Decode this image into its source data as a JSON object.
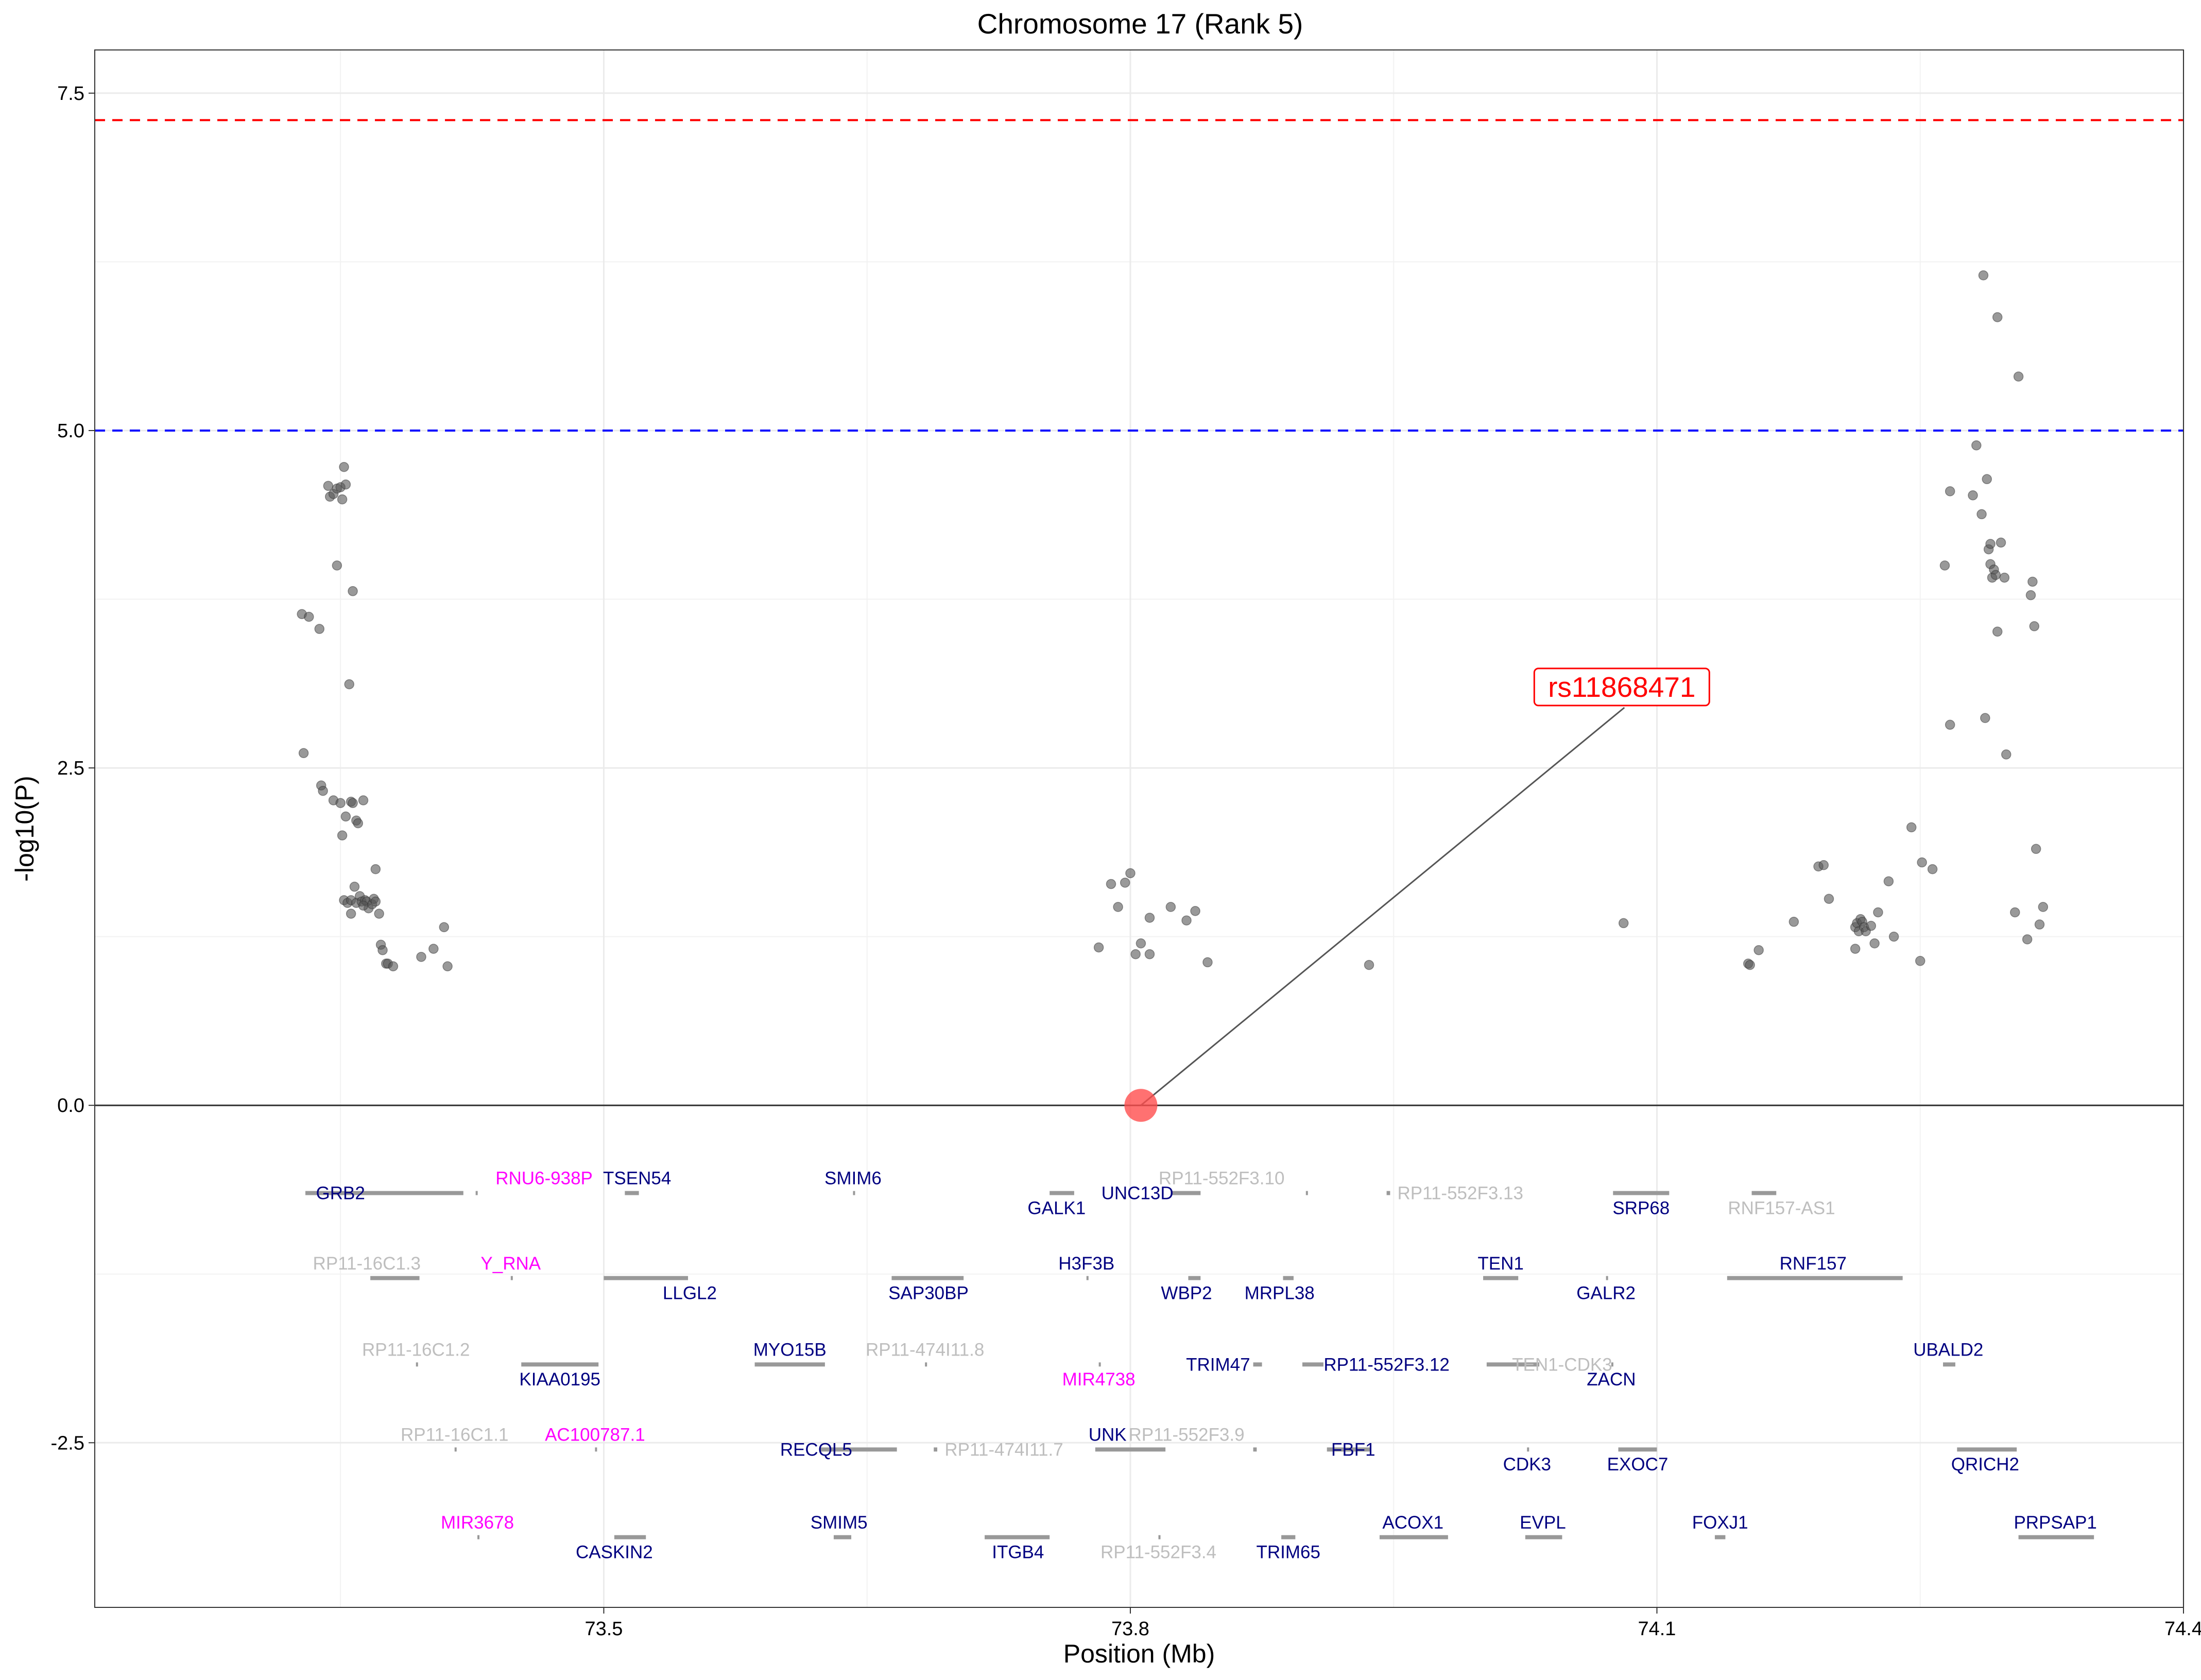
{
  "chart_data": {
    "type": "scatter",
    "title": "Chromosome 17 (Rank 5)",
    "xlabel": "Position (Mb)",
    "ylabel": "-log10(P)",
    "xlim": [
      73.21,
      74.4
    ],
    "ylim": [
      -3.72,
      7.82
    ],
    "x_ticks": [
      73.5,
      73.8,
      74.1,
      74.4
    ],
    "x_tick_labels": [
      "73.5",
      "73.8",
      "74.1",
      "74.4"
    ],
    "y_ticks": [
      -2.5,
      0,
      2.5,
      5,
      7.5
    ],
    "y_tick_labels": [
      "-2.5",
      "0.0",
      "2.5",
      "5.0",
      "7.5"
    ],
    "grid": true,
    "thresholds": [
      {
        "value": 7.3,
        "color": "#ff0000",
        "style": "dashed"
      },
      {
        "value": 5.0,
        "color": "#0000ff",
        "style": "dashed"
      }
    ],
    "zero_line": 0,
    "lead_snp": {
      "name": "rs11868471",
      "x": 73.806,
      "y": 0.0,
      "label_x": 74.08,
      "label_y": 3.1,
      "color": "#ff0000"
    },
    "points": [
      [
        73.328,
        3.64
      ],
      [
        73.332,
        3.62
      ],
      [
        73.338,
        3.53
      ],
      [
        73.329,
        2.61
      ],
      [
        73.339,
        2.37
      ],
      [
        73.34,
        2.33
      ],
      [
        73.343,
        4.59
      ],
      [
        73.344,
        4.51
      ],
      [
        73.346,
        4.53
      ],
      [
        73.348,
        4.57
      ],
      [
        73.35,
        4.58
      ],
      [
        73.352,
        4.73
      ],
      [
        73.353,
        4.6
      ],
      [
        73.351,
        4.49
      ],
      [
        73.348,
        4.0
      ],
      [
        73.357,
        3.81
      ],
      [
        73.355,
        3.12
      ],
      [
        73.356,
        2.25
      ],
      [
        73.359,
        2.11
      ],
      [
        73.36,
        2.09
      ],
      [
        73.346,
        2.26
      ],
      [
        73.351,
        2.0
      ],
      [
        73.353,
        2.14
      ],
      [
        73.35,
        2.24
      ],
      [
        73.357,
        2.24
      ],
      [
        73.363,
        2.26
      ],
      [
        73.37,
        1.75
      ],
      [
        73.352,
        1.52
      ],
      [
        73.354,
        1.5
      ],
      [
        73.356,
        1.52
      ],
      [
        73.358,
        1.62
      ],
      [
        73.359,
        1.5
      ],
      [
        73.361,
        1.55
      ],
      [
        73.362,
        1.51
      ],
      [
        73.364,
        1.52
      ],
      [
        73.365,
        1.51
      ],
      [
        73.366,
        1.46
      ],
      [
        73.368,
        1.49
      ],
      [
        73.369,
        1.53
      ],
      [
        73.37,
        1.51
      ],
      [
        73.372,
        1.42
      ],
      [
        73.373,
        1.19
      ],
      [
        73.374,
        1.15
      ],
      [
        73.376,
        1.05
      ],
      [
        73.377,
        1.05
      ],
      [
        73.38,
        1.03
      ],
      [
        73.356,
        1.42
      ],
      [
        73.363,
        1.48
      ],
      [
        73.396,
        1.1
      ],
      [
        73.403,
        1.16
      ],
      [
        73.409,
        1.32
      ],
      [
        73.411,
        1.03
      ],
      [
        73.782,
        1.17
      ],
      [
        73.789,
        1.64
      ],
      [
        73.793,
        1.47
      ],
      [
        73.797,
        1.65
      ],
      [
        73.8,
        1.72
      ],
      [
        73.803,
        1.12
      ],
      [
        73.806,
        1.2
      ],
      [
        73.811,
        1.39
      ],
      [
        73.811,
        1.12
      ],
      [
        73.823,
        1.47
      ],
      [
        73.832,
        1.37
      ],
      [
        73.837,
        1.44
      ],
      [
        73.844,
        1.06
      ],
      [
        73.936,
        1.04
      ],
      [
        74.081,
        1.35
      ],
      [
        74.152,
        1.05
      ],
      [
        74.153,
        1.04
      ],
      [
        74.158,
        1.15
      ],
      [
        74.178,
        1.36
      ],
      [
        74.192,
        1.77
      ],
      [
        74.195,
        1.78
      ],
      [
        74.198,
        1.53
      ],
      [
        74.213,
        1.16
      ],
      [
        74.213,
        1.32
      ],
      [
        74.214,
        1.35
      ],
      [
        74.215,
        1.29
      ],
      [
        74.216,
        1.38
      ],
      [
        74.217,
        1.36
      ],
      [
        74.218,
        1.32
      ],
      [
        74.219,
        1.29
      ],
      [
        74.222,
        1.33
      ],
      [
        74.224,
        1.2
      ],
      [
        74.226,
        1.43
      ],
      [
        74.232,
        1.66
      ],
      [
        74.235,
        1.25
      ],
      [
        74.245,
        2.06
      ],
      [
        74.25,
        1.07
      ],
      [
        74.251,
        1.8
      ],
      [
        74.257,
        1.75
      ],
      [
        74.267,
        2.82
      ],
      [
        74.264,
        4.0
      ],
      [
        74.267,
        4.55
      ],
      [
        74.28,
        4.52
      ],
      [
        74.282,
        4.89
      ],
      [
        74.285,
        4.38
      ],
      [
        74.286,
        6.15
      ],
      [
        74.288,
        4.64
      ],
      [
        74.289,
        4.12
      ],
      [
        74.29,
        4.16
      ],
      [
        74.29,
        4.01
      ],
      [
        74.291,
        3.91
      ],
      [
        74.292,
        3.97
      ],
      [
        74.293,
        3.93
      ],
      [
        74.294,
        3.51
      ],
      [
        74.294,
        5.84
      ],
      [
        74.296,
        4.17
      ],
      [
        74.298,
        3.91
      ],
      [
        74.287,
        2.87
      ],
      [
        74.299,
        2.6
      ],
      [
        74.304,
        1.43
      ],
      [
        74.306,
        5.4
      ],
      [
        74.311,
        1.23
      ],
      [
        74.313,
        3.78
      ],
      [
        74.314,
        3.88
      ],
      [
        74.315,
        3.55
      ],
      [
        74.316,
        1.9
      ],
      [
        74.318,
        1.34
      ],
      [
        74.32,
        1.47
      ]
    ],
    "genes": [
      {
        "name": "GRB2",
        "start": 73.33,
        "end": 73.42,
        "y": -0.65,
        "lx": 73.35,
        "ly": -0.65,
        "color": "#000080"
      },
      {
        "name": "RNU6-938P",
        "start": 73.427,
        "end": 73.428,
        "y": -0.65,
        "lx": 73.466,
        "ly": -0.54,
        "color": "#ff00ff"
      },
      {
        "name": "TSEN54",
        "start": 73.512,
        "end": 73.52,
        "y": -0.65,
        "lx": 73.519,
        "ly": -0.54,
        "color": "#000080"
      },
      {
        "name": "SMIM6",
        "start": 73.642,
        "end": 73.643,
        "y": -0.65,
        "lx": 73.642,
        "ly": -0.54,
        "color": "#000080"
      },
      {
        "name": "GALK1",
        "start": 73.754,
        "end": 73.768,
        "y": -0.65,
        "lx": 73.758,
        "ly": -0.76,
        "color": "#000080"
      },
      {
        "name": "UNC13D",
        "start": 73.823,
        "end": 73.84,
        "y": -0.65,
        "lx": 73.804,
        "ly": -0.65,
        "color": "#000080"
      },
      {
        "name": "RP11-552F3.10",
        "start": 73.9,
        "end": 73.901,
        "y": -0.65,
        "lx": 73.852,
        "ly": -0.54,
        "color": "#bebebe"
      },
      {
        "name": "RP11-552F3.13",
        "start": 73.946,
        "end": 73.948,
        "y": -0.65,
        "lx": 73.988,
        "ly": -0.65,
        "color": "#bebebe"
      },
      {
        "name": "SRP68",
        "start": 74.075,
        "end": 74.107,
        "y": -0.65,
        "lx": 74.091,
        "ly": -0.76,
        "color": "#000080"
      },
      {
        "name": "RNF157-AS1",
        "start": 74.154,
        "end": 74.168,
        "y": -0.65,
        "lx": 74.171,
        "ly": -0.76,
        "color": "#bebebe"
      },
      {
        "name": "RP11-16C1.3",
        "start": 73.367,
        "end": 73.395,
        "y": -1.28,
        "lx": 73.365,
        "ly": -1.17,
        "color": "#bebebe"
      },
      {
        "name": "Y_RNA",
        "start": 73.447,
        "end": 73.448,
        "y": -1.28,
        "lx": 73.447,
        "ly": -1.17,
        "color": "#ff00ff"
      },
      {
        "name": "LLGL2",
        "start": 73.5,
        "end": 73.548,
        "y": -1.28,
        "lx": 73.549,
        "ly": -1.39,
        "color": "#000080"
      },
      {
        "name": "SAP30BP",
        "start": 73.664,
        "end": 73.705,
        "y": -1.28,
        "lx": 73.685,
        "ly": -1.39,
        "color": "#000080"
      },
      {
        "name": "H3F3B",
        "start": 73.775,
        "end": 73.776,
        "y": -1.28,
        "lx": 73.775,
        "ly": -1.17,
        "color": "#000080"
      },
      {
        "name": "WBP2",
        "start": 73.833,
        "end": 73.84,
        "y": -1.28,
        "lx": 73.832,
        "ly": -1.39,
        "color": "#000080"
      },
      {
        "name": "MRPL38",
        "start": 73.887,
        "end": 73.893,
        "y": -1.28,
        "lx": 73.885,
        "ly": -1.39,
        "color": "#000080"
      },
      {
        "name": "TEN1",
        "start": 74.001,
        "end": 74.021,
        "y": -1.28,
        "lx": 74.011,
        "ly": -1.17,
        "color": "#000080"
      },
      {
        "name": "GALR2",
        "start": 74.071,
        "end": 74.072,
        "y": -1.28,
        "lx": 74.071,
        "ly": -1.39,
        "color": "#000080"
      },
      {
        "name": "RNF157",
        "start": 74.14,
        "end": 74.24,
        "y": -1.28,
        "lx": 74.189,
        "ly": -1.17,
        "color": "#000080"
      },
      {
        "name": "RP11-16C1.2",
        "start": 73.393,
        "end": 73.394,
        "y": -1.92,
        "lx": 73.393,
        "ly": -1.81,
        "color": "#bebebe"
      },
      {
        "name": "KIAA0195",
        "start": 73.453,
        "end": 73.497,
        "y": -1.92,
        "lx": 73.475,
        "ly": -2.03,
        "color": "#000080"
      },
      {
        "name": "MYO15B",
        "start": 73.586,
        "end": 73.626,
        "y": -1.92,
        "lx": 73.606,
        "ly": -1.81,
        "color": "#000080"
      },
      {
        "name": "RP11-474I11.8",
        "start": 73.683,
        "end": 73.684,
        "y": -1.92,
        "lx": 73.683,
        "ly": -1.81,
        "color": "#bebebe"
      },
      {
        "name": "MIR4738",
        "start": 73.782,
        "end": 73.783,
        "y": -1.92,
        "lx": 73.782,
        "ly": -2.03,
        "color": "#ff00ff"
      },
      {
        "name": "TRIM47",
        "start": 73.87,
        "end": 73.875,
        "y": -1.92,
        "lx": 73.85,
        "ly": -1.92,
        "color": "#000080"
      },
      {
        "name": "RP11-552F3.12",
        "start": 73.898,
        "end": 73.91,
        "y": -1.92,
        "lx": 73.946,
        "ly": -1.92,
        "color": "#000080"
      },
      {
        "name": "TEN1-CDK3",
        "start": 74.003,
        "end": 74.033,
        "y": -1.92,
        "lx": 74.046,
        "ly": -1.92,
        "color": "#bebebe"
      },
      {
        "name": "ZACN",
        "start": 74.074,
        "end": 74.075,
        "y": -1.92,
        "lx": 74.074,
        "ly": -2.03,
        "color": "#000080"
      },
      {
        "name": "UBALD2",
        "start": 74.263,
        "end": 74.27,
        "y": -1.92,
        "lx": 74.266,
        "ly": -1.81,
        "color": "#000080"
      },
      {
        "name": "RP11-16C1.1",
        "start": 73.415,
        "end": 73.416,
        "y": -2.55,
        "lx": 73.415,
        "ly": -2.44,
        "color": "#bebebe"
      },
      {
        "name": "AC100787.1",
        "start": 73.495,
        "end": 73.496,
        "y": -2.55,
        "lx": 73.495,
        "ly": -2.44,
        "color": "#ff00ff"
      },
      {
        "name": "RECQL5",
        "start": 73.623,
        "end": 73.667,
        "y": -2.55,
        "lx": 73.621,
        "ly": -2.55,
        "color": "#000080"
      },
      {
        "name": "RP11-474I11.7",
        "start": 73.688,
        "end": 73.69,
        "y": -2.55,
        "lx": 73.728,
        "ly": -2.55,
        "color": "#bebebe"
      },
      {
        "name": "UNK",
        "start": 73.78,
        "end": 73.82,
        "y": -2.55,
        "lx": 73.787,
        "ly": -2.44,
        "color": "#000080"
      },
      {
        "name": "RP11-552F3.9",
        "start": 73.87,
        "end": 73.872,
        "y": -2.55,
        "lx": 73.832,
        "ly": -2.44,
        "color": "#bebebe"
      },
      {
        "name": "FBF1",
        "start": 73.912,
        "end": 73.937,
        "y": -2.55,
        "lx": 73.927,
        "ly": -2.55,
        "color": "#000080"
      },
      {
        "name": "CDK3",
        "start": 74.026,
        "end": 74.027,
        "y": -2.55,
        "lx": 74.026,
        "ly": -2.66,
        "color": "#000080"
      },
      {
        "name": "EXOC7",
        "start": 74.078,
        "end": 74.1,
        "y": -2.55,
        "lx": 74.089,
        "ly": -2.66,
        "color": "#000080"
      },
      {
        "name": "QRICH2",
        "start": 74.271,
        "end": 74.305,
        "y": -2.55,
        "lx": 74.287,
        "ly": -2.66,
        "color": "#000080"
      },
      {
        "name": "MIR3678",
        "start": 73.428,
        "end": 73.429,
        "y": -3.2,
        "lx": 73.428,
        "ly": -3.09,
        "color": "#ff00ff"
      },
      {
        "name": "CASKIN2",
        "start": 73.506,
        "end": 73.524,
        "y": -3.2,
        "lx": 73.506,
        "ly": -3.31,
        "color": "#000080"
      },
      {
        "name": "SMIM5",
        "start": 73.631,
        "end": 73.641,
        "y": -3.2,
        "lx": 73.634,
        "ly": -3.09,
        "color": "#000080"
      },
      {
        "name": "ITGB4",
        "start": 73.717,
        "end": 73.754,
        "y": -3.2,
        "lx": 73.736,
        "ly": -3.31,
        "color": "#000080"
      },
      {
        "name": "RP11-552F3.4",
        "start": 73.816,
        "end": 73.817,
        "y": -3.2,
        "lx": 73.816,
        "ly": -3.31,
        "color": "#bebebe"
      },
      {
        "name": "TRIM65",
        "start": 73.886,
        "end": 73.894,
        "y": -3.2,
        "lx": 73.89,
        "ly": -3.31,
        "color": "#000080"
      },
      {
        "name": "ACOX1",
        "start": 73.942,
        "end": 73.981,
        "y": -3.2,
        "lx": 73.961,
        "ly": -3.09,
        "color": "#000080"
      },
      {
        "name": "EVPL",
        "start": 74.025,
        "end": 74.046,
        "y": -3.2,
        "lx": 74.035,
        "ly": -3.09,
        "color": "#000080"
      },
      {
        "name": "FOXJ1",
        "start": 74.133,
        "end": 74.139,
        "y": -3.2,
        "lx": 74.136,
        "ly": -3.09,
        "color": "#000080"
      },
      {
        "name": "PRPSAP1",
        "start": 74.306,
        "end": 74.349,
        "y": -3.2,
        "lx": 74.327,
        "ly": -3.09,
        "color": "#000080"
      }
    ]
  }
}
